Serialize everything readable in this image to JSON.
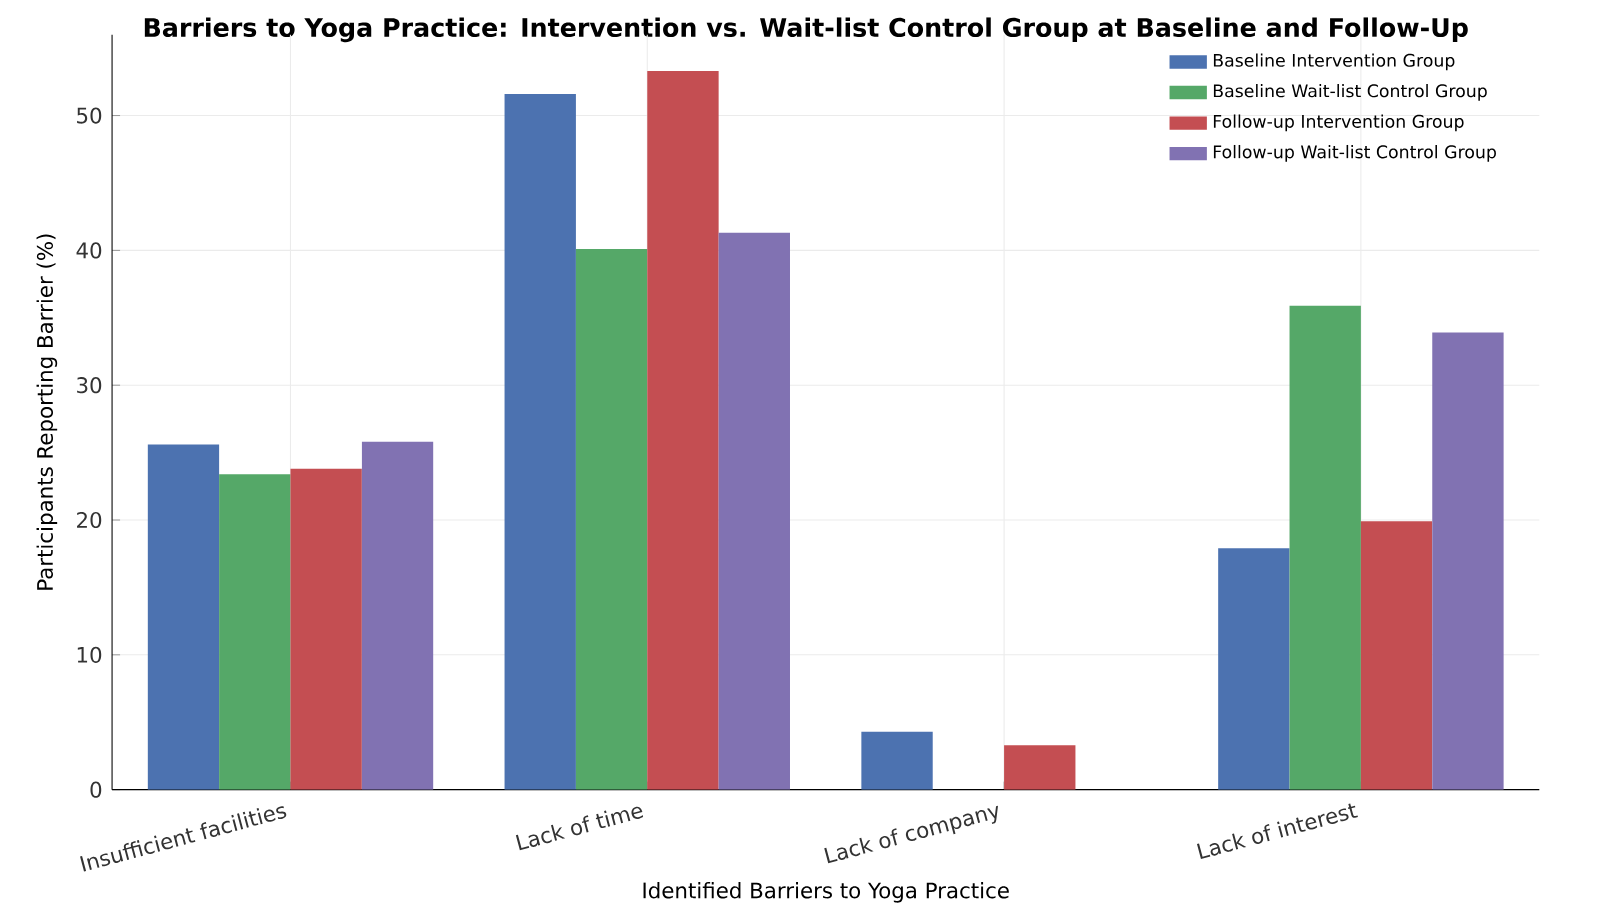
{
  "chart_data": {
    "type": "bar",
    "title": "Barriers to Yoga Practice: Intervention vs. Wait-list Control Group at Baseline and Follow-Up",
    "xlabel": "Identified Barriers to Yoga Practice",
    "ylabel": "Participants Reporting Barrier (%)",
    "categories": [
      "Insufficient facilities",
      "Lack of time",
      "Lack of company",
      "Lack of interest"
    ],
    "series": [
      {
        "name": "Baseline Intervention Group",
        "color": "#4c72b0",
        "values": [
          25.6,
          51.6,
          4.3,
          17.9
        ]
      },
      {
        "name": "Baseline Wait-list Control Group",
        "color": "#55a868",
        "values": [
          23.4,
          40.1,
          0,
          35.9
        ]
      },
      {
        "name": "Follow-up Intervention Group",
        "color": "#c44e52",
        "values": [
          23.8,
          53.3,
          3.3,
          19.9
        ]
      },
      {
        "name": "Follow-up Wait-list Control Group",
        "color": "#8172b2",
        "values": [
          25.8,
          41.3,
          0,
          33.9
        ]
      }
    ],
    "ylim": [
      0,
      56
    ],
    "yticks": [
      0,
      10,
      20,
      30,
      40,
      50
    ],
    "grid": true,
    "legend": "top right"
  }
}
